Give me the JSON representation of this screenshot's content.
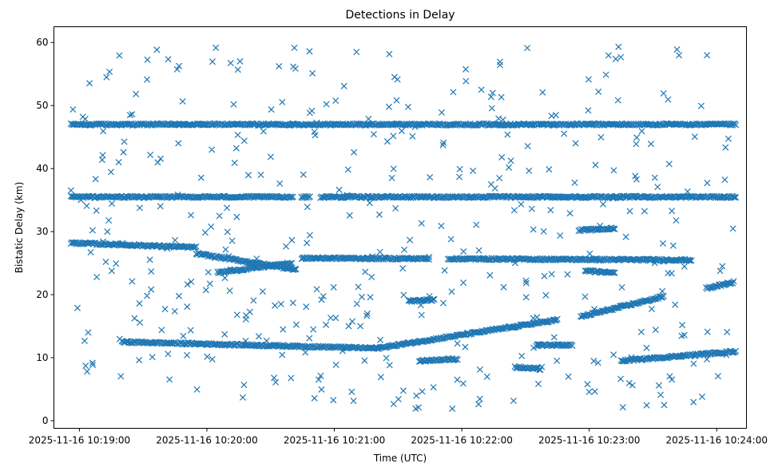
{
  "chart_data": {
    "type": "scatter",
    "title": "Detections in Delay",
    "xlabel": "Time (UTC)",
    "ylabel": "Bistatic Delay (km)",
    "marker": "x",
    "color": "#1f77b4",
    "grid": false,
    "legend": "none",
    "xlim": [
      "2025-11-16 10:18:48",
      "2025-11-16 10:24:14"
    ],
    "ylim": [
      -1.2,
      62.5
    ],
    "x_ticks": [
      "2025-11-16 10:19:00",
      "2025-11-16 10:20:00",
      "2025-11-16 10:21:00",
      "2025-11-16 10:22:00",
      "2025-11-16 10:23:00",
      "2025-11-16 10:24:00"
    ],
    "y_ticks": [
      0,
      10,
      20,
      30,
      40,
      50,
      60
    ],
    "bands": [
      {
        "y_start": 47,
        "y_end": 47,
        "t_start": "2025-11-16 10:18:56",
        "t_end": "2025-11-16 10:24:09",
        "gaps": []
      },
      {
        "y_start": 35.5,
        "y_end": 35.5,
        "t_start": "2025-11-16 10:18:56",
        "t_end": "2025-11-16 10:24:09",
        "gaps": [
          [
            "2025-11-16 10:20:41",
            "2025-11-16 10:20:44"
          ],
          [
            "2025-11-16 10:20:49",
            "2025-11-16 10:20:53"
          ]
        ]
      },
      {
        "y_start": 28.2,
        "y_end": 27.5,
        "t_start": "2025-11-16 10:18:56",
        "t_end": "2025-11-16 10:19:55",
        "gaps": []
      },
      {
        "y_start": 26.5,
        "y_end": 24.0,
        "t_start": "2025-11-16 10:19:55",
        "t_end": "2025-11-16 10:20:42",
        "gaps": []
      },
      {
        "y_start": 25.8,
        "y_end": 25.5,
        "t_start": "2025-11-16 10:20:45",
        "t_end": "2025-11-16 10:23:48",
        "gaps": [
          [
            "2025-11-16 10:21:45",
            "2025-11-16 10:21:53"
          ]
        ]
      },
      {
        "y_start": 23.5,
        "y_end": 25.0,
        "t_start": "2025-11-16 10:20:05",
        "t_end": "2025-11-16 10:20:40",
        "gaps": []
      },
      {
        "y_start": 12.5,
        "y_end": 11.5,
        "t_start": "2025-11-16 10:19:20",
        "t_end": "2025-11-16 10:21:20",
        "gaps": []
      },
      {
        "y_start": 11.5,
        "y_end": 16.0,
        "t_start": "2025-11-16 10:21:20",
        "t_end": "2025-11-16 10:22:45",
        "gaps": []
      },
      {
        "y_start": 16.5,
        "y_end": 19.7,
        "t_start": "2025-11-16 10:22:56",
        "t_end": "2025-11-16 10:23:35",
        "gaps": []
      },
      {
        "y_start": 9.5,
        "y_end": 11.0,
        "t_start": "2025-11-16 10:23:15",
        "t_end": "2025-11-16 10:24:09",
        "gaps": []
      },
      {
        "y_start": 21.0,
        "y_end": 22.0,
        "t_start": "2025-11-16 10:23:55",
        "t_end": "2025-11-16 10:24:08",
        "gaps": []
      },
      {
        "y_start": 30.2,
        "y_end": 30.5,
        "t_start": "2025-11-16 10:22:55",
        "t_end": "2025-11-16 10:23:12",
        "gaps": []
      },
      {
        "y_start": 19.0,
        "y_end": 19.2,
        "t_start": "2025-11-16 10:21:35",
        "t_end": "2025-11-16 10:21:47",
        "gaps": []
      },
      {
        "y_start": 9.5,
        "y_end": 9.8,
        "t_start": "2025-11-16 10:21:40",
        "t_end": "2025-11-16 10:21:58",
        "gaps": []
      },
      {
        "y_start": 8.5,
        "y_end": 8.2,
        "t_start": "2025-11-16 10:22:25",
        "t_end": "2025-11-16 10:22:37",
        "gaps": []
      },
      {
        "y_start": 23.8,
        "y_end": 23.4,
        "t_start": "2025-11-16 10:22:58",
        "t_end": "2025-11-16 10:23:12",
        "gaps": []
      },
      {
        "y_start": 12.0,
        "y_end": 12.0,
        "t_start": "2025-11-16 10:22:35",
        "t_end": "2025-11-16 10:22:52",
        "gaps": []
      }
    ],
    "scatter_sample_count": 420,
    "scatter_y_range": [
      1.5,
      59.8
    ]
  }
}
